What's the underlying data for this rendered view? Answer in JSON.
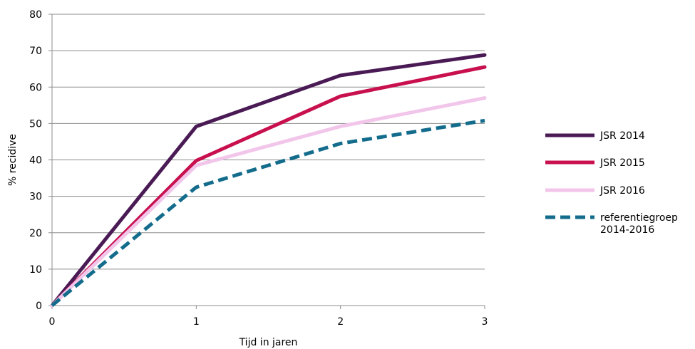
{
  "chart_data": {
    "type": "line",
    "title": "",
    "xlabel": "Tijd in jaren",
    "ylabel": "% recidive",
    "x": [
      0,
      1,
      2,
      3
    ],
    "x_ticks": [
      "0",
      "1",
      "2",
      "3"
    ],
    "y_ticks": [
      "0",
      "10",
      "20",
      "30",
      "40",
      "50",
      "60",
      "70",
      "80"
    ],
    "xlim": [
      0,
      3
    ],
    "ylim": [
      0,
      80
    ],
    "grid": "horizontal",
    "legend_position": "right",
    "series": [
      {
        "name": "JSR 2014",
        "values": [
          0,
          49.2,
          63.2,
          68.8
        ],
        "color": "#4a1a55",
        "dash": "solid"
      },
      {
        "name": "JSR 2015",
        "values": [
          0,
          39.8,
          57.5,
          65.5
        ],
        "color": "#c8104f",
        "dash": "solid"
      },
      {
        "name": "JSR 2016",
        "values": [
          0,
          38.5,
          49.2,
          57.0
        ],
        "color": "#f2c6ea",
        "dash": "solid"
      },
      {
        "name": "referentiegroep 2014-2016",
        "legend_lines": [
          "referentiegroep",
          "2014-2016"
        ],
        "values": [
          0,
          32.5,
          44.5,
          50.8
        ],
        "color": "#136c8c",
        "dash": "dashed"
      }
    ]
  }
}
